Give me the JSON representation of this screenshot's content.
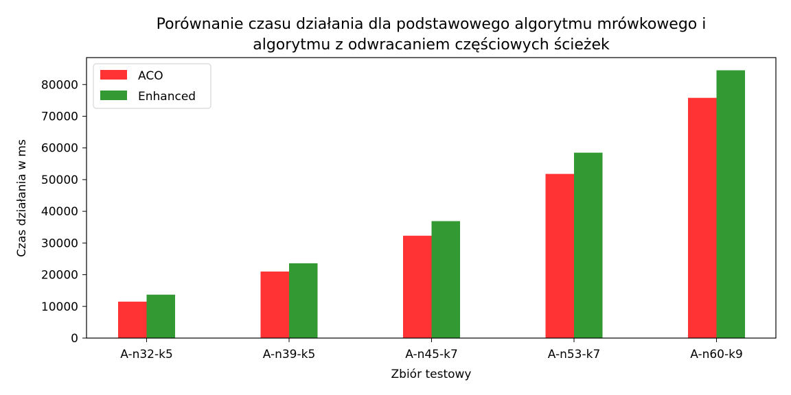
{
  "chart_data": {
    "type": "bar",
    "title_line1": "Porównanie czasu działania dla podstawowego algorytmu mrówkowego i",
    "title_line2": "algorytmu z odwracaniem częściowych ścieżek",
    "xlabel": "Zbiór testowy",
    "ylabel": "Czas działania w ms",
    "categories": [
      "A-n32-k5",
      "A-n39-k5",
      "A-n45-k7",
      "A-n53-k7",
      "A-n60-k9"
    ],
    "series": [
      {
        "name": "ACO",
        "color": "#ff3333",
        "values": [
          11500,
          21000,
          32300,
          51800,
          75800
        ]
      },
      {
        "name": "Enhanced",
        "color": "#339933",
        "values": [
          13700,
          23600,
          36900,
          58500,
          84500
        ]
      }
    ],
    "ylim": [
      0,
      88500
    ],
    "yticks": [
      0,
      10000,
      20000,
      30000,
      40000,
      50000,
      60000,
      70000,
      80000
    ],
    "legend": "top-left",
    "grid": false
  }
}
